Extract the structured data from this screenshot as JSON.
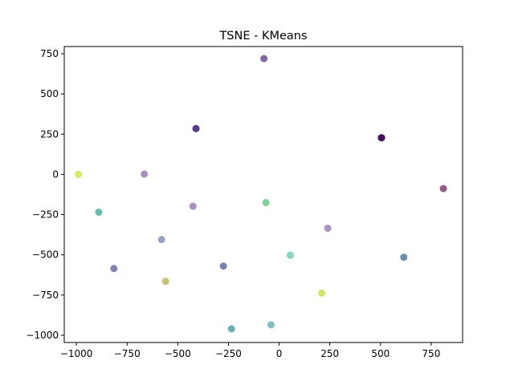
{
  "chart_data": {
    "type": "scatter",
    "title": "TSNE - KMeans",
    "xlabel": "",
    "ylabel": "",
    "xlim": [
      -1060,
      905
    ],
    "ylim": [
      -1045,
      795
    ],
    "xticks": [
      -1000,
      -750,
      -500,
      -250,
      0,
      250,
      500,
      750
    ],
    "yticks": [
      750,
      500,
      250,
      0,
      -250,
      -500,
      -750,
      -1000
    ],
    "grid": false,
    "points": [
      {
        "x": -75,
        "y": 720,
        "color": "#472a7a"
      },
      {
        "x": -410,
        "y": 285,
        "color": "#482475"
      },
      {
        "x": -410,
        "y": 285,
        "color": "#472c7a"
      },
      {
        "x": 505,
        "y": 228,
        "color": "#440154"
      },
      {
        "x": 505,
        "y": 228,
        "color": "#46075a"
      },
      {
        "x": 505,
        "y": 228,
        "color": "#450559"
      },
      {
        "x": -990,
        "y": 0,
        "color": "#c2df23"
      },
      {
        "x": -665,
        "y": 2,
        "color": "#7e62a3"
      },
      {
        "x": 810,
        "y": -88,
        "color": "#5c1552"
      },
      {
        "x": -65,
        "y": -175,
        "color": "#4ac16d"
      },
      {
        "x": -425,
        "y": -198,
        "color": "#7e62a3"
      },
      {
        "x": -890,
        "y": -235,
        "color": "#25a08c"
      },
      {
        "x": 240,
        "y": -335,
        "color": "#7e6aa6"
      },
      {
        "x": -580,
        "y": -405,
        "color": "#6b7aab"
      },
      {
        "x": 55,
        "y": -503,
        "color": "#55c2a8"
      },
      {
        "x": 615,
        "y": -515,
        "color": "#2c6190"
      },
      {
        "x": -275,
        "y": -570,
        "color": "#3b4b8c"
      },
      {
        "x": -815,
        "y": -585,
        "color": "#4d4f8f"
      },
      {
        "x": -560,
        "y": -665,
        "color": "#b3a53a"
      },
      {
        "x": 210,
        "y": -738,
        "color": "#bcdc22"
      },
      {
        "x": -40,
        "y": -935,
        "color": "#4fa3ad"
      },
      {
        "x": -235,
        "y": -960,
        "color": "#2c8b93"
      }
    ]
  }
}
